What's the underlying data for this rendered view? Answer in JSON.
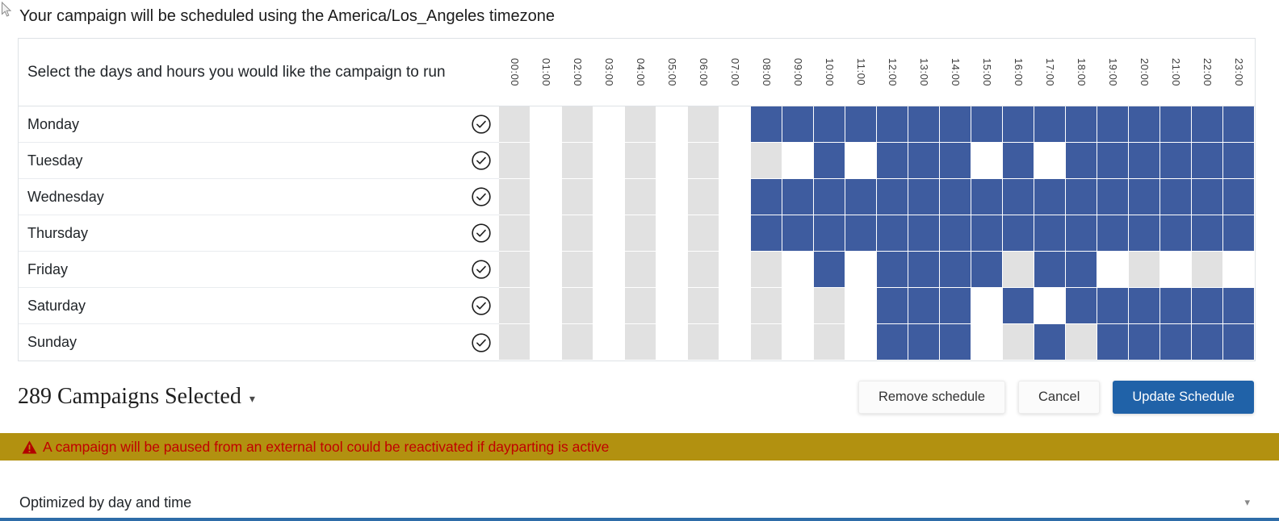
{
  "header": {
    "timezone_notice": "Your campaign will be scheduled using the America/Los_Angeles timezone"
  },
  "schedule": {
    "instruction": "Select the days and hours you would like the campaign to run",
    "hours": [
      "00:00",
      "01:00",
      "02:00",
      "03:00",
      "04:00",
      "05:00",
      "06:00",
      "07:00",
      "08:00",
      "09:00",
      "10:00",
      "11:00",
      "12:00",
      "13:00",
      "14:00",
      "15:00",
      "16:00",
      "17:00",
      "18:00",
      "19:00",
      "20:00",
      "21:00",
      "22:00",
      "23:00"
    ],
    "days": [
      {
        "label": "Monday",
        "selected_hours": [
          8,
          9,
          10,
          11,
          12,
          13,
          14,
          15,
          16,
          17,
          18,
          19,
          20,
          21,
          22,
          23
        ]
      },
      {
        "label": "Tuesday",
        "selected_hours": [
          10,
          12,
          13,
          14,
          16,
          18,
          19,
          20,
          21,
          22,
          23
        ]
      },
      {
        "label": "Wednesday",
        "selected_hours": [
          8,
          9,
          10,
          11,
          12,
          13,
          14,
          15,
          16,
          17,
          18,
          19,
          20,
          21,
          22,
          23
        ]
      },
      {
        "label": "Thursday",
        "selected_hours": [
          8,
          9,
          10,
          11,
          12,
          13,
          14,
          15,
          16,
          17,
          18,
          19,
          20,
          21,
          22,
          23
        ]
      },
      {
        "label": "Friday",
        "selected_hours": [
          10,
          12,
          13,
          14,
          15,
          17,
          18
        ]
      },
      {
        "label": "Saturday",
        "selected_hours": [
          12,
          13,
          14,
          16,
          18,
          19,
          20,
          21,
          22,
          23
        ]
      },
      {
        "label": "Sunday",
        "selected_hours": [
          12,
          13,
          14,
          17,
          19,
          20,
          21,
          22,
          23
        ]
      }
    ]
  },
  "footer": {
    "campaigns_selected": "289 Campaigns Selected",
    "remove_label": "Remove schedule",
    "cancel_label": "Cancel",
    "update_label": "Update Schedule"
  },
  "warning": {
    "text": "A campaign will be paused from an external tool could be reactivated if dayparting is active"
  },
  "optimizer": {
    "label": "Optimized by day and time"
  },
  "colors": {
    "selected_cell": "#3e5c9f",
    "stripe_cell": "#e1e1e1",
    "primary_button": "#2062a8",
    "warning_banner_bg": "#b29110",
    "warning_text": "#c00000",
    "bottom_bar": "#2e6ca8"
  }
}
